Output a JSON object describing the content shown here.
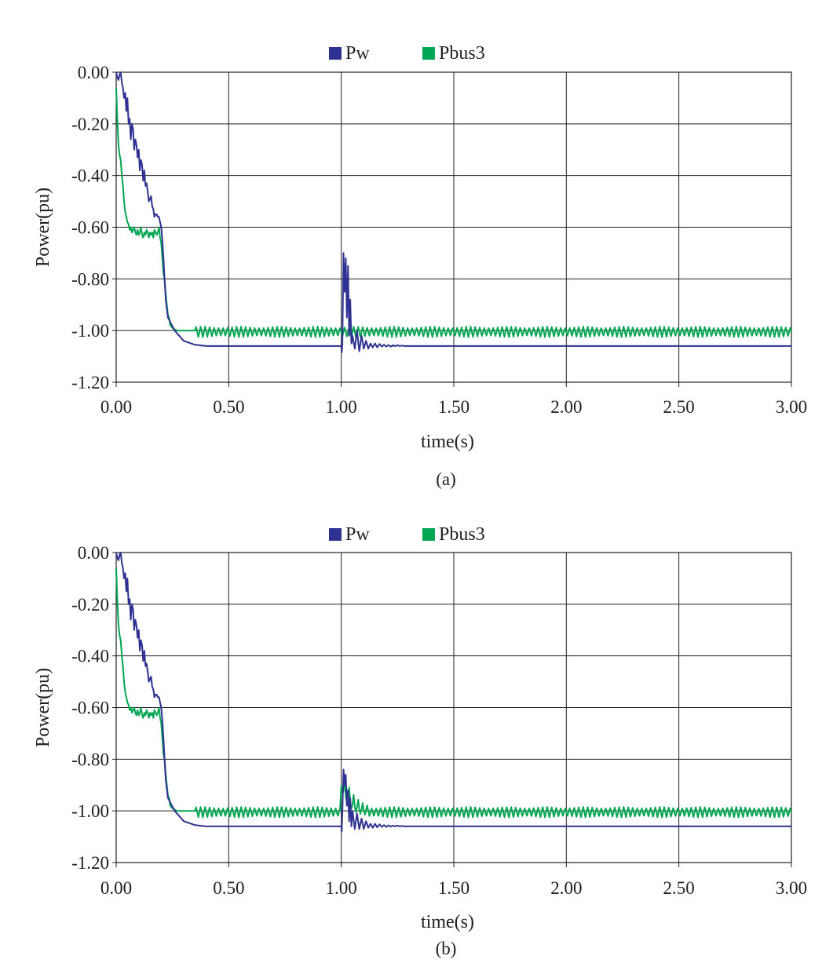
{
  "chart_data": [
    {
      "type": "line",
      "panel_label": "(a)",
      "xlabel": "time(s)",
      "ylabel": "Power(pu)",
      "xlim": [
        0,
        3
      ],
      "ylim": [
        -1.2,
        0
      ],
      "xticks": [
        0,
        0.5,
        1,
        1.5,
        2,
        2.5,
        3
      ],
      "xtick_labels": [
        "0.00",
        "0.50",
        "1.00",
        "1.50",
        "2.00",
        "2.50",
        "3.00"
      ],
      "yticks": [
        0,
        -0.2,
        -0.4,
        -0.6,
        -0.8,
        -1.0,
        -1.2
      ],
      "ytick_labels": [
        "0.00",
        "-0.20",
        "-0.40",
        "-0.60",
        "-0.80",
        "-1.00",
        "-1.20"
      ],
      "grid": true,
      "legend_position": "top-center",
      "series": [
        {
          "name": "Pw",
          "color": "#2e3192",
          "x": [
            0.0,
            0.005,
            0.01,
            0.015,
            0.02,
            0.025,
            0.03,
            0.035,
            0.04,
            0.045,
            0.05,
            0.055,
            0.06,
            0.065,
            0.07,
            0.075,
            0.08,
            0.085,
            0.09,
            0.095,
            0.1,
            0.105,
            0.11,
            0.115,
            0.12,
            0.125,
            0.13,
            0.135,
            0.14,
            0.145,
            0.15,
            0.155,
            0.16,
            0.165,
            0.17,
            0.175,
            0.18,
            0.185,
            0.19,
            0.195,
            0.2,
            0.205,
            0.21,
            0.215,
            0.22,
            0.23,
            0.26,
            0.3,
            0.35,
            0.4,
            0.42,
            0.45,
            0.5,
            0.8,
            1.0,
            1.002,
            1.005,
            1.01,
            1.015,
            1.02,
            1.025,
            1.03,
            1.035,
            1.04,
            1.045,
            1.05,
            1.06,
            1.07,
            1.08,
            1.09,
            1.1,
            1.11,
            1.12,
            1.13,
            1.14,
            1.15,
            1.16,
            1.17,
            1.18,
            1.19,
            1.2,
            1.21,
            1.22,
            1.23,
            1.24,
            1.25,
            1.26,
            1.27,
            1.28,
            1.3,
            1.5,
            2.0,
            2.5,
            3.0
          ],
          "y": [
            -0.0,
            -0.02,
            -0.03,
            -0.01,
            0.0,
            -0.04,
            -0.06,
            -0.1,
            -0.08,
            -0.15,
            -0.1,
            -0.2,
            -0.18,
            -0.26,
            -0.2,
            -0.22,
            -0.3,
            -0.26,
            -0.28,
            -0.33,
            -0.3,
            -0.38,
            -0.34,
            -0.36,
            -0.42,
            -0.38,
            -0.44,
            -0.43,
            -0.46,
            -0.5,
            -0.49,
            -0.48,
            -0.52,
            -0.53,
            -0.56,
            -0.55,
            -0.55,
            -0.56,
            -0.56,
            -0.58,
            -0.6,
            -0.65,
            -0.72,
            -0.8,
            -0.88,
            -0.95,
            -1.0,
            -1.04,
            -1.055,
            -1.06,
            -1.06,
            -1.06,
            -1.06,
            -1.06,
            -1.06,
            -1.085,
            -1.05,
            -0.7,
            -0.85,
            -0.72,
            -0.95,
            -0.75,
            -1.02,
            -0.88,
            -1.05,
            -1.02,
            -1.07,
            -1.0,
            -1.08,
            -1.02,
            -1.07,
            -1.04,
            -1.07,
            -1.05,
            -1.065,
            -1.05,
            -1.065,
            -1.052,
            -1.062,
            -1.055,
            -1.062,
            -1.056,
            -1.062,
            -1.057,
            -1.06,
            -1.057,
            -1.06,
            -1.058,
            -1.06,
            -1.06,
            -1.06,
            -1.06,
            -1.06,
            -1.06
          ]
        },
        {
          "name": "Pbus3",
          "color": "#00a651",
          "x": [
            0.0,
            0.005,
            0.01,
            0.015,
            0.02,
            0.025,
            0.03,
            0.035,
            0.04,
            0.045,
            0.05,
            0.055,
            0.06,
            0.065,
            0.07,
            0.075,
            0.08,
            0.085,
            0.09,
            0.095,
            0.1,
            0.105,
            0.11,
            0.115,
            0.12,
            0.125,
            0.13,
            0.135,
            0.14,
            0.145,
            0.15,
            0.155,
            0.16,
            0.165,
            0.17,
            0.175,
            0.18,
            0.185,
            0.19,
            0.195,
            0.2,
            0.205,
            0.21,
            0.215,
            0.22,
            0.225,
            0.23,
            0.235,
            0.24,
            0.25,
            0.27,
            0.3,
            0.35
          ],
          "y": [
            -0.06,
            -0.18,
            -0.28,
            -0.32,
            -0.34,
            -0.4,
            -0.44,
            -0.5,
            -0.54,
            -0.56,
            -0.58,
            -0.59,
            -0.61,
            -0.6,
            -0.62,
            -0.61,
            -0.6,
            -0.62,
            -0.63,
            -0.61,
            -0.63,
            -0.62,
            -0.6,
            -0.63,
            -0.64,
            -0.62,
            -0.63,
            -0.61,
            -0.62,
            -0.64,
            -0.62,
            -0.63,
            -0.62,
            -0.64,
            -0.61,
            -0.62,
            -0.63,
            -0.62,
            -0.6,
            -0.64,
            -0.66,
            -0.72,
            -0.78,
            -0.8,
            -0.86,
            -0.9,
            -0.94,
            -0.95,
            -0.98,
            -0.99,
            -1.0,
            -1.0,
            -1.0
          ],
          "steady_state": {
            "from": 0.35,
            "to": 3.0,
            "mean": -1.005,
            "ripple_amplitude": 0.02,
            "ripple_period": 0.02
          },
          "transient": {
            "at": 1.0,
            "peak": -1.0,
            "duration": 0.0
          }
        }
      ]
    },
    {
      "type": "line",
      "panel_label": "(b)",
      "xlabel": "time(s)",
      "ylabel": "Power(pu)",
      "xlim": [
        0,
        3
      ],
      "ylim": [
        -1.2,
        0
      ],
      "xticks": [
        0,
        0.5,
        1,
        1.5,
        2,
        2.5,
        3
      ],
      "xtick_labels": [
        "0.00",
        "0.50",
        "1.00",
        "1.50",
        "2.00",
        "2.50",
        "3.00"
      ],
      "yticks": [
        0,
        -0.2,
        -0.4,
        -0.6,
        -0.8,
        -1.0,
        -1.2
      ],
      "ytick_labels": [
        "0.00",
        "-0.20",
        "-0.40",
        "-0.60",
        "-0.80",
        "-1.00",
        "-1.20"
      ],
      "grid": true,
      "legend_position": "top-center",
      "series": [
        {
          "name": "Pw",
          "color": "#2e3192",
          "x": [
            0.0,
            0.005,
            0.01,
            0.015,
            0.02,
            0.025,
            0.03,
            0.035,
            0.04,
            0.045,
            0.05,
            0.055,
            0.06,
            0.065,
            0.07,
            0.075,
            0.08,
            0.085,
            0.09,
            0.095,
            0.1,
            0.105,
            0.11,
            0.115,
            0.12,
            0.125,
            0.13,
            0.135,
            0.14,
            0.145,
            0.15,
            0.155,
            0.16,
            0.165,
            0.17,
            0.175,
            0.18,
            0.185,
            0.19,
            0.195,
            0.2,
            0.205,
            0.21,
            0.215,
            0.22,
            0.23,
            0.26,
            0.3,
            0.35,
            0.4,
            0.42,
            0.45,
            0.5,
            0.8,
            1.0,
            1.002,
            1.005,
            1.01,
            1.015,
            1.02,
            1.025,
            1.03,
            1.035,
            1.04,
            1.045,
            1.05,
            1.06,
            1.07,
            1.08,
            1.09,
            1.1,
            1.11,
            1.12,
            1.13,
            1.14,
            1.15,
            1.16,
            1.17,
            1.18,
            1.19,
            1.2,
            1.21,
            1.22,
            1.23,
            1.24,
            1.25,
            1.26,
            1.27,
            1.28,
            1.3,
            1.5,
            2.0,
            2.5,
            3.0
          ],
          "y": [
            -0.0,
            -0.02,
            -0.03,
            -0.01,
            0.0,
            -0.04,
            -0.06,
            -0.1,
            -0.08,
            -0.15,
            -0.1,
            -0.2,
            -0.18,
            -0.26,
            -0.2,
            -0.22,
            -0.3,
            -0.26,
            -0.28,
            -0.33,
            -0.3,
            -0.38,
            -0.34,
            -0.36,
            -0.42,
            -0.38,
            -0.44,
            -0.43,
            -0.46,
            -0.5,
            -0.49,
            -0.48,
            -0.52,
            -0.53,
            -0.56,
            -0.55,
            -0.55,
            -0.56,
            -0.56,
            -0.58,
            -0.6,
            -0.65,
            -0.72,
            -0.8,
            -0.88,
            -0.95,
            -1.0,
            -1.04,
            -1.055,
            -1.06,
            -1.06,
            -1.06,
            -1.06,
            -1.06,
            -1.06,
            -1.08,
            -1.0,
            -0.84,
            -0.9,
            -0.86,
            -0.98,
            -0.92,
            -1.04,
            -0.95,
            -1.06,
            -1.0,
            -1.07,
            -1.01,
            -1.07,
            -1.03,
            -1.07,
            -1.04,
            -1.065,
            -1.05,
            -1.065,
            -1.05,
            -1.064,
            -1.052,
            -1.062,
            -1.055,
            -1.062,
            -1.056,
            -1.061,
            -1.057,
            -1.06,
            -1.057,
            -1.06,
            -1.058,
            -1.06,
            -1.06,
            -1.06,
            -1.06,
            -1.06,
            -1.06
          ]
        },
        {
          "name": "Pbus3",
          "color": "#00a651",
          "x": [
            0.0,
            0.005,
            0.01,
            0.015,
            0.02,
            0.025,
            0.03,
            0.035,
            0.04,
            0.045,
            0.05,
            0.055,
            0.06,
            0.065,
            0.07,
            0.075,
            0.08,
            0.085,
            0.09,
            0.095,
            0.1,
            0.105,
            0.11,
            0.115,
            0.12,
            0.125,
            0.13,
            0.135,
            0.14,
            0.145,
            0.15,
            0.155,
            0.16,
            0.165,
            0.17,
            0.175,
            0.18,
            0.185,
            0.19,
            0.195,
            0.2,
            0.205,
            0.21,
            0.215,
            0.22,
            0.225,
            0.23,
            0.235,
            0.24,
            0.25,
            0.27,
            0.3,
            0.35
          ],
          "y": [
            -0.06,
            -0.18,
            -0.28,
            -0.32,
            -0.34,
            -0.4,
            -0.44,
            -0.5,
            -0.54,
            -0.56,
            -0.58,
            -0.59,
            -0.61,
            -0.6,
            -0.62,
            -0.61,
            -0.6,
            -0.62,
            -0.63,
            -0.61,
            -0.63,
            -0.62,
            -0.6,
            -0.63,
            -0.64,
            -0.62,
            -0.63,
            -0.61,
            -0.62,
            -0.64,
            -0.62,
            -0.63,
            -0.62,
            -0.64,
            -0.61,
            -0.62,
            -0.63,
            -0.62,
            -0.6,
            -0.64,
            -0.66,
            -0.72,
            -0.78,
            -0.8,
            -0.86,
            -0.9,
            -0.94,
            -0.95,
            -0.98,
            -0.99,
            -1.0,
            -1.0,
            -1.0
          ],
          "steady_state": {
            "from": 0.35,
            "to": 3.0,
            "mean": -1.005,
            "ripple_amplitude": 0.02,
            "ripple_period": 0.02
          },
          "transient": {
            "at": 1.0,
            "peak": -0.82,
            "duration": 0.12
          }
        }
      ]
    }
  ]
}
